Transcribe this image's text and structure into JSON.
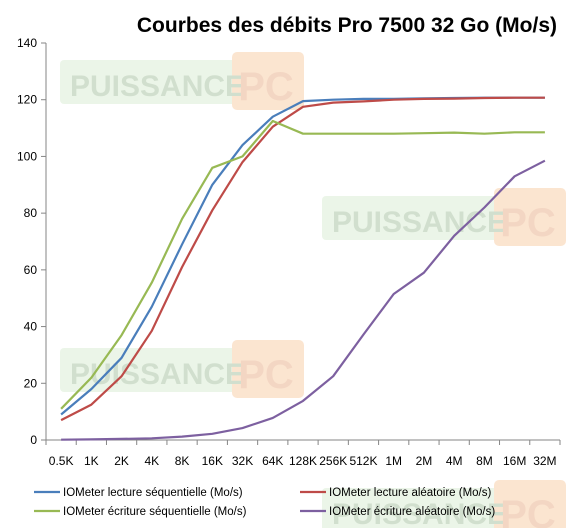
{
  "chart_data": {
    "type": "line",
    "title": "Courbes des débits Pro 7500 32 Go (Mo/s)",
    "xlabel": "",
    "ylabel": "",
    "categories": [
      "0.5K",
      "1K",
      "2K",
      "4K",
      "8K",
      "16K",
      "32K",
      "64K",
      "128K",
      "256K",
      "512K",
      "1M",
      "2M",
      "4M",
      "8M",
      "16M",
      "32M"
    ],
    "ylim": [
      0,
      140
    ],
    "yticks": [
      0,
      20,
      40,
      60,
      80,
      100,
      120,
      140
    ],
    "grid": false,
    "legend_position": "bottom",
    "series": [
      {
        "name": "IOMeter lecture séquentielle (Mo/s)",
        "color": "#4a7ebb",
        "values": [
          9,
          18,
          29,
          47,
          69,
          90,
          104,
          114,
          119.5,
          120,
          120.3,
          120.3,
          120.5,
          120.6,
          120.7,
          120.7,
          120.7
        ]
      },
      {
        "name": "IOMeter lecture aléatoire (Mo/s)",
        "color": "#be4b48",
        "values": [
          7,
          12.5,
          22.5,
          38.5,
          61,
          81,
          98,
          110.5,
          117.5,
          119,
          119.4,
          120,
          120.3,
          120.4,
          120.6,
          120.7,
          120.7
        ]
      },
      {
        "name": "IOMeter écriture séquentielle (Mo/s)",
        "color": "#98b954",
        "values": [
          11,
          22,
          37,
          55.5,
          78,
          96,
          100,
          112.5,
          108,
          108,
          108,
          108,
          108.2,
          108.4,
          108,
          108.5,
          108.5
        ]
      },
      {
        "name": "IOMeter écriture aléatoire (Mo/s)",
        "color": "#7d60a0",
        "values": [
          0.1,
          0.2,
          0.4,
          0.6,
          1.2,
          2.2,
          4.2,
          7.8,
          13.8,
          22.5,
          37.2,
          51.5,
          59,
          72,
          82,
          93,
          98.5
        ]
      }
    ]
  },
  "watermarks": [
    {
      "name": "watermark-top",
      "word": "PUISSANCE",
      "badge": "PC"
    },
    {
      "name": "watermark-middle",
      "word": "PUISSANCE",
      "badge": "PC"
    },
    {
      "name": "watermark-bottom-left",
      "word": "PUISSANCE",
      "badge": "PC"
    },
    {
      "name": "watermark-bottom-right",
      "word": "PUISSANCE",
      "badge": "PC"
    }
  ]
}
